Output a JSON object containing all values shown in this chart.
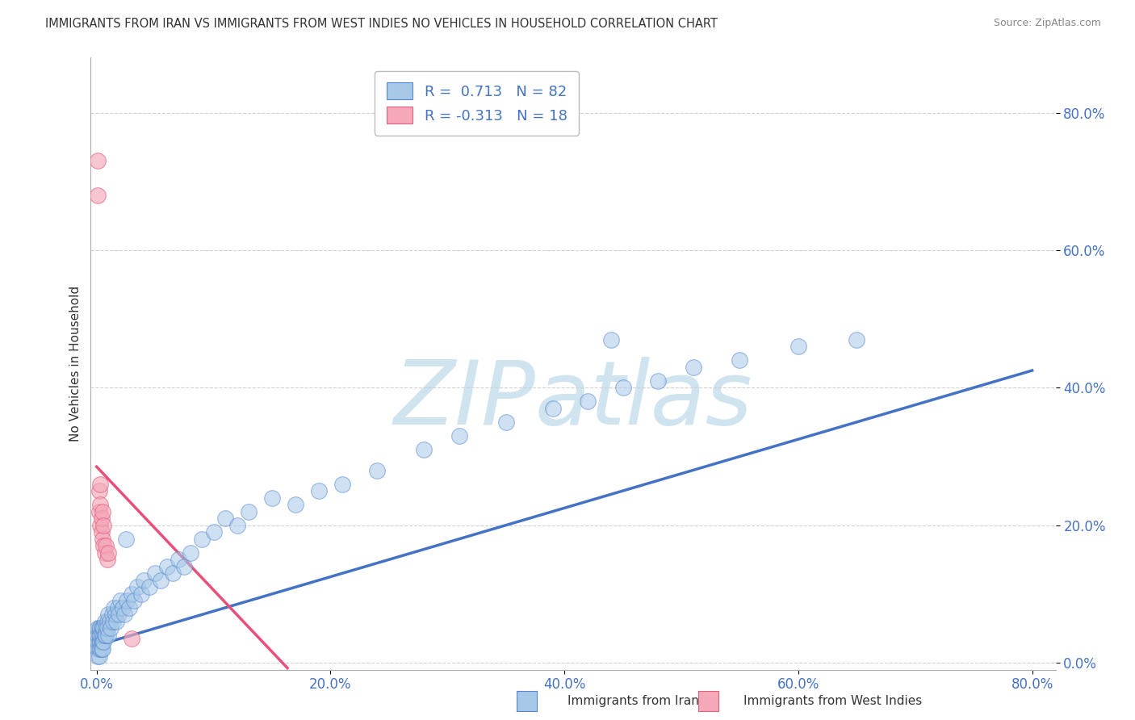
{
  "title": "IMMIGRANTS FROM IRAN VS IMMIGRANTS FROM WEST INDIES NO VEHICLES IN HOUSEHOLD CORRELATION CHART",
  "source": "Source: ZipAtlas.com",
  "ylabel": "No Vehicles in Household",
  "xlabel_iran": "Immigrants from Iran",
  "xlabel_wi": "Immigrants from West Indies",
  "R_iran": 0.713,
  "N_iran": 82,
  "R_wi": -0.313,
  "N_wi": 18,
  "xlim": [
    -0.005,
    0.82
  ],
  "ylim": [
    -0.01,
    0.88
  ],
  "yticks": [
    0.0,
    0.2,
    0.4,
    0.6,
    0.8
  ],
  "xticks": [
    0.0,
    0.2,
    0.4,
    0.6,
    0.8
  ],
  "color_iran": "#a8c8e8",
  "color_wi": "#f4a8b8",
  "edge_iran": "#5588cc",
  "edge_wi": "#e06080",
  "trend_iran": "#4472c4",
  "trend_wi": "#e8507a",
  "watermark": "ZIPatlas",
  "watermark_color": "#d0e4f0",
  "trend_iran_x0": 0.0,
  "trend_iran_y0": 0.025,
  "trend_iran_x1": 0.8,
  "trend_iran_y1": 0.425,
  "trend_wi_x0": 0.0,
  "trend_wi_x1": 0.17,
  "trend_wi_y0": 0.285,
  "trend_wi_y1": -0.02,
  "iran_x": [
    0.001,
    0.001,
    0.001,
    0.001,
    0.001,
    0.002,
    0.002,
    0.002,
    0.002,
    0.002,
    0.003,
    0.003,
    0.003,
    0.003,
    0.004,
    0.004,
    0.004,
    0.004,
    0.005,
    0.005,
    0.005,
    0.006,
    0.006,
    0.006,
    0.007,
    0.007,
    0.008,
    0.008,
    0.009,
    0.009,
    0.01,
    0.01,
    0.011,
    0.012,
    0.013,
    0.014,
    0.015,
    0.016,
    0.017,
    0.018,
    0.019,
    0.02,
    0.022,
    0.024,
    0.026,
    0.028,
    0.03,
    0.032,
    0.035,
    0.038,
    0.04,
    0.045,
    0.05,
    0.055,
    0.06,
    0.065,
    0.07,
    0.075,
    0.08,
    0.09,
    0.1,
    0.11,
    0.12,
    0.13,
    0.15,
    0.17,
    0.19,
    0.21,
    0.24,
    0.28,
    0.31,
    0.35,
    0.39,
    0.42,
    0.45,
    0.48,
    0.51,
    0.55,
    0.6,
    0.65,
    0.44,
    0.025
  ],
  "iran_y": [
    0.02,
    0.03,
    0.04,
    0.01,
    0.05,
    0.02,
    0.03,
    0.04,
    0.01,
    0.05,
    0.03,
    0.05,
    0.02,
    0.04,
    0.03,
    0.05,
    0.02,
    0.04,
    0.03,
    0.05,
    0.02,
    0.04,
    0.03,
    0.05,
    0.04,
    0.06,
    0.05,
    0.04,
    0.06,
    0.05,
    0.07,
    0.04,
    0.06,
    0.05,
    0.07,
    0.06,
    0.08,
    0.07,
    0.06,
    0.08,
    0.07,
    0.09,
    0.08,
    0.07,
    0.09,
    0.08,
    0.1,
    0.09,
    0.11,
    0.1,
    0.12,
    0.11,
    0.13,
    0.12,
    0.14,
    0.13,
    0.15,
    0.14,
    0.16,
    0.18,
    0.19,
    0.21,
    0.2,
    0.22,
    0.24,
    0.23,
    0.25,
    0.26,
    0.28,
    0.31,
    0.33,
    0.35,
    0.37,
    0.38,
    0.4,
    0.41,
    0.43,
    0.44,
    0.46,
    0.47,
    0.47,
    0.18
  ],
  "wi_x": [
    0.001,
    0.001,
    0.002,
    0.002,
    0.003,
    0.003,
    0.003,
    0.004,
    0.004,
    0.005,
    0.005,
    0.006,
    0.006,
    0.007,
    0.008,
    0.009,
    0.01,
    0.03
  ],
  "wi_y": [
    0.73,
    0.68,
    0.22,
    0.25,
    0.23,
    0.2,
    0.26,
    0.19,
    0.21,
    0.18,
    0.22,
    0.17,
    0.2,
    0.16,
    0.17,
    0.15,
    0.16,
    0.035
  ]
}
